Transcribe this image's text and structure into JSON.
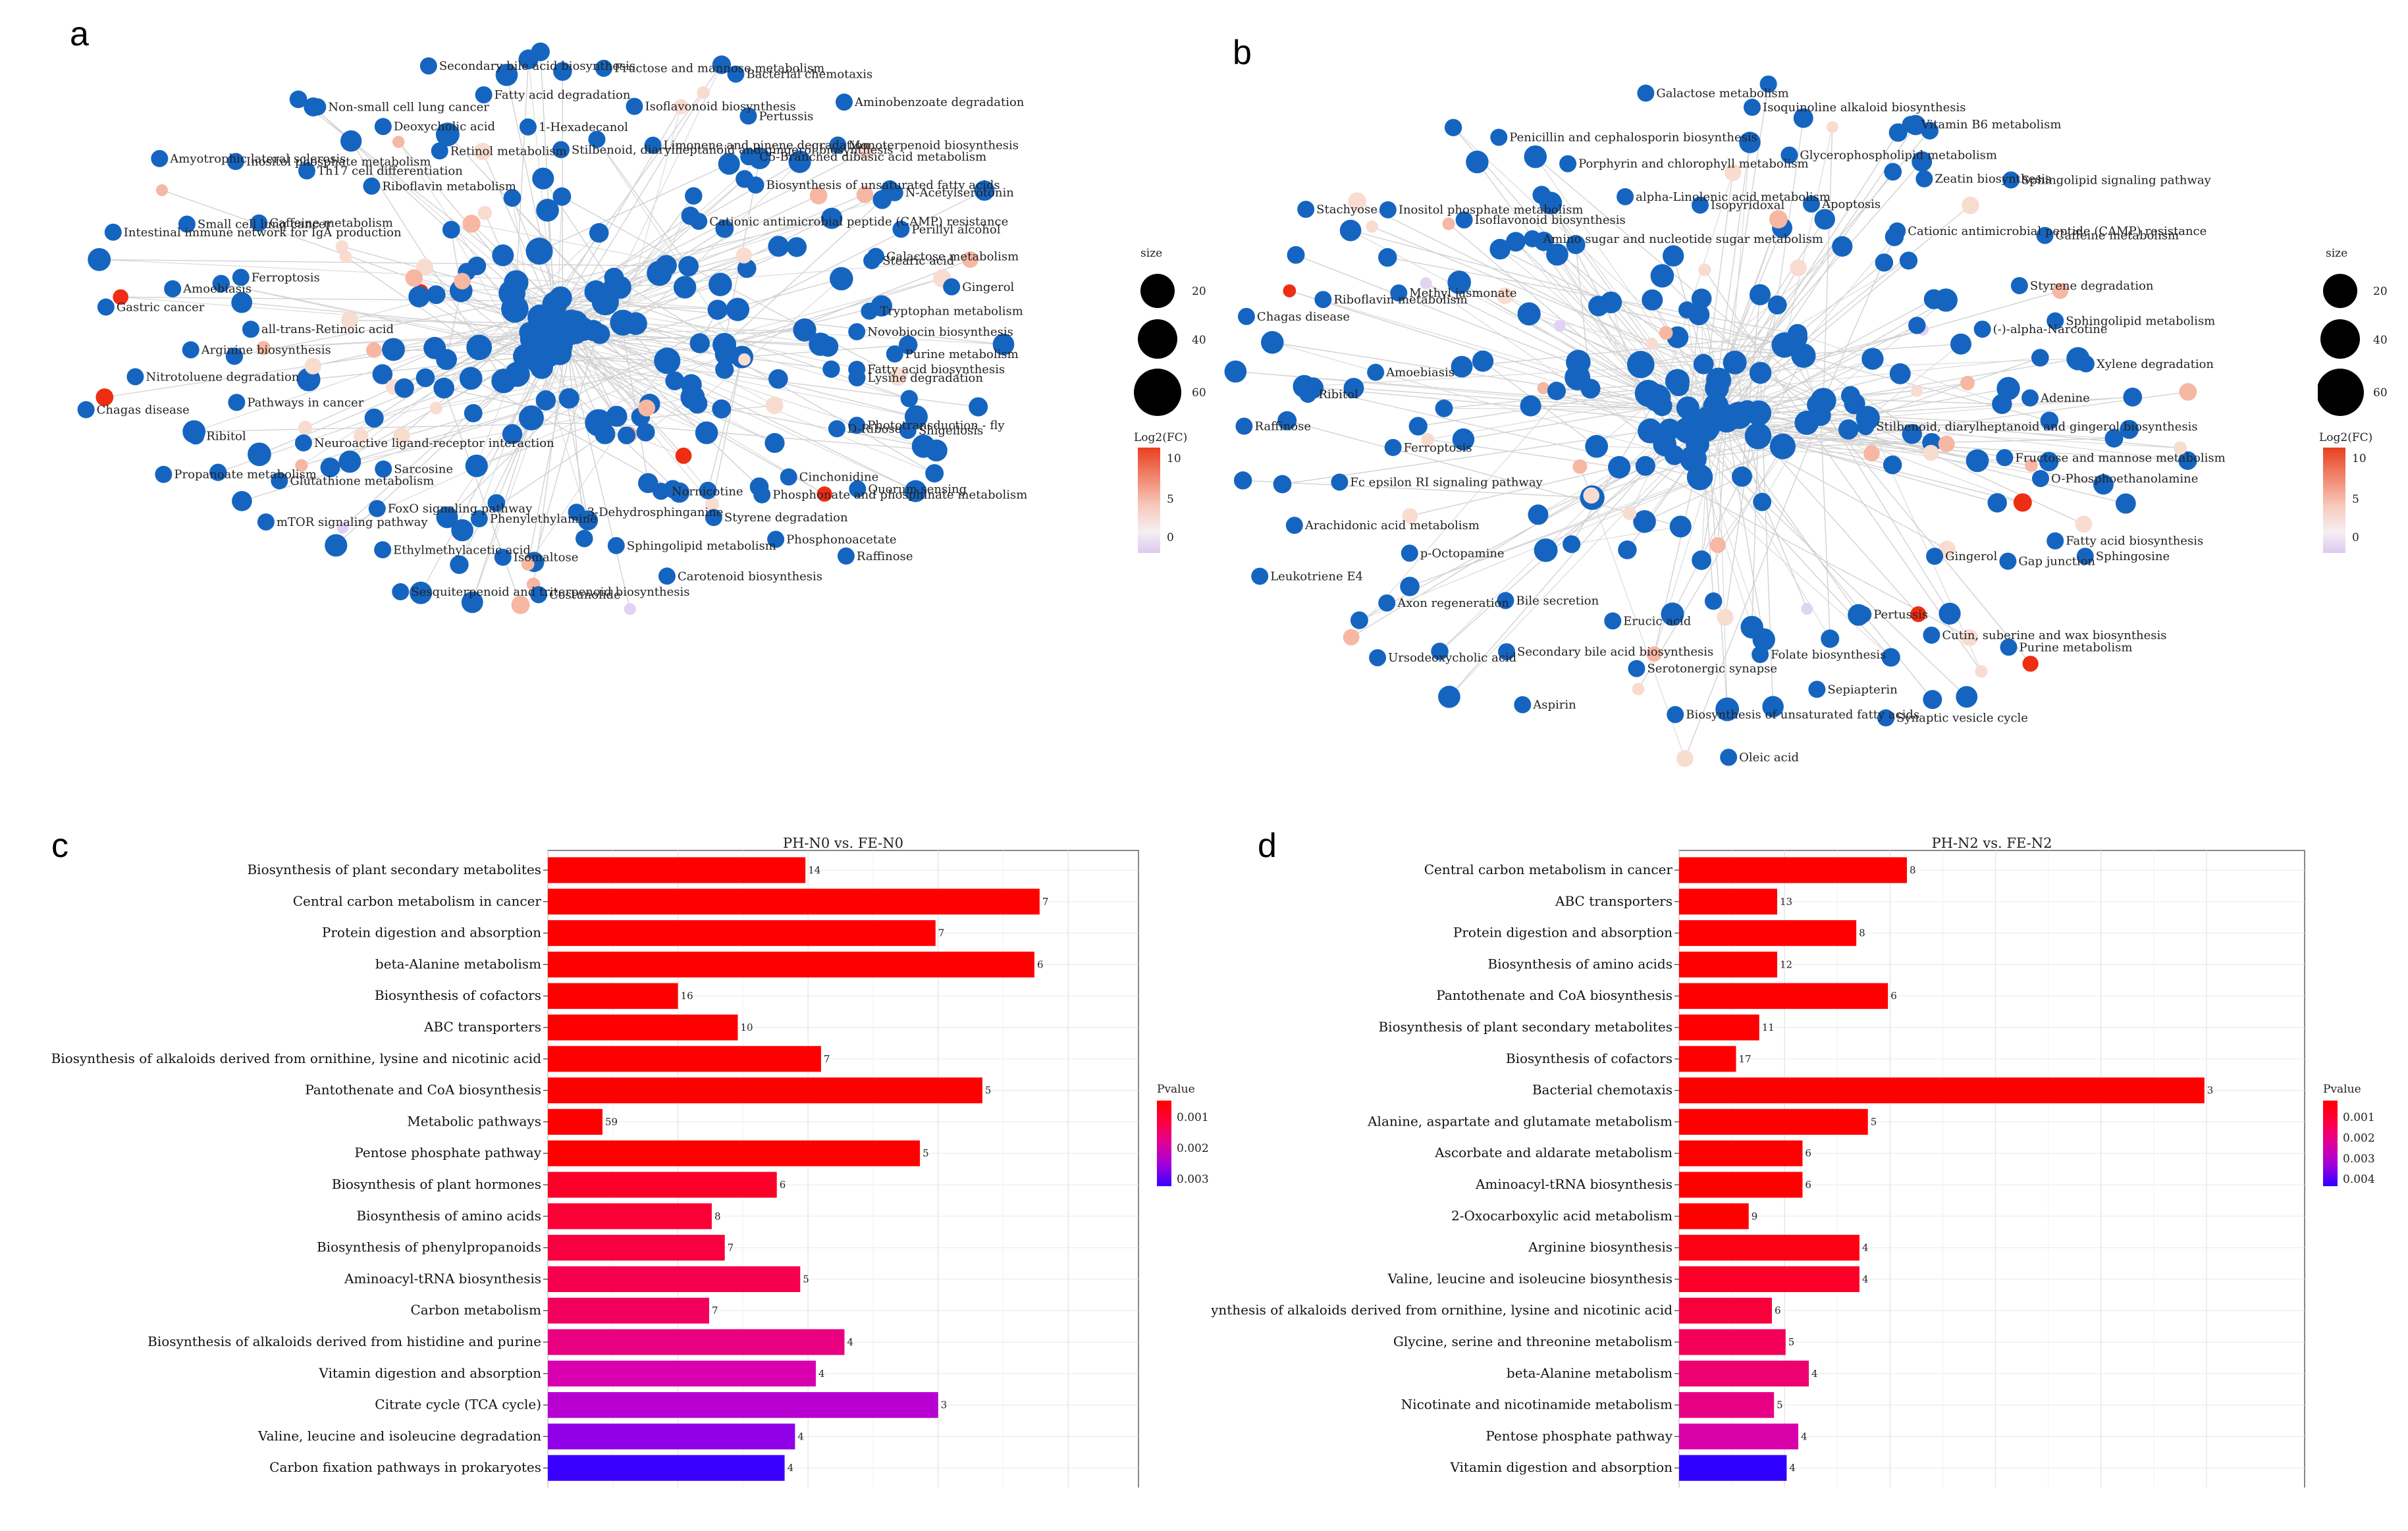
{
  "panels": {
    "a": "a",
    "b": "b",
    "c": "c",
    "d": "d"
  },
  "network_legend": {
    "size_title": "size",
    "size_values": [
      "20",
      "40",
      "60"
    ],
    "color_title": "Log2(FC)",
    "color_ticks": [
      "10",
      "5",
      "0"
    ]
  },
  "network_legend_b": {
    "size_title": "size",
    "size_values": [
      "20",
      "40",
      "60"
    ],
    "color_title": "Log2(FC)",
    "color_ticks": [
      "10",
      "5",
      "0"
    ]
  },
  "network_a_labels": [
    "Stilbenoid, diarylheptanoid and gingerol biosynthesis",
    "Fructose and mannose metabolism",
    "Isoflavonoid biosynthesis",
    "Limonene and pinene degradation",
    "Bacterial chemotaxis",
    "Pertussis",
    "C5-Branched dibasic acid metabolism",
    "Aminobenzoate degradation",
    "Monoterpenoid biosynthesis",
    "Biosynthesis of unsaturated fatty acids",
    "Cationic antimicrobial peptide (CAMP) resistance",
    "N-Acetylserotonin",
    "Perillyl alcohol",
    "Stearic acid",
    "Galactose metabolism",
    "Gingerol",
    "Tryptophan metabolism",
    "Novobiocin biosynthesis",
    "Purine metabolism",
    "Fatty acid biosynthesis",
    "Lysine degradation",
    "Phototransduction - fly",
    "Shigellosis",
    "D-Ribose",
    "Phosphonate and phosphinate metabolism",
    "Quorum sensing",
    "Cinchonidine",
    "Raffinose",
    "Phosphonoacetate",
    "Styrene degradation",
    "Nornicotine",
    "Carotenoid biosynthesis",
    "Sphingolipid metabolism",
    "3-Dehydrosphinganine",
    "Costunolide",
    "Isomaltose",
    "Phenylethylamine",
    "Sesquiterpenoid and triterpenoid biosynthesis",
    "Ethylmethylacetic acid",
    "FoxO signaling pathway",
    "Sarcosine",
    "mTOR signaling pathway",
    "Glutathione metabolism",
    "Neuroactive ligand-receptor interaction",
    "Propanoate metabolism",
    "Ribitol",
    "Pathways in cancer",
    "Chagas disease",
    "Nitrotoluene degradation",
    "Arginine biosynthesis",
    "all-trans-Retinoic acid",
    "Gastric cancer",
    "Amoebiasis",
    "Ferroptosis",
    "Intestinal immune network for IgA production",
    "Small cell lung cancer",
    "Caffeine metabolism",
    "Amyotrophic lateral sclerosis",
    "Inositol phosphate metabolism",
    "Th17 cell differentiation",
    "Riboflavin metabolism",
    "Non-small cell lung cancer",
    "Deoxycholic acid",
    "Retinol metabolism",
    "Secondary bile acid biosynthesis",
    "Fatty acid degradation",
    "1-Hexadecanol"
  ],
  "network_b_labels": [
    "Isopyridoxal",
    "Isoquinoline alkaloid biosynthesis",
    "Glycerophospholipid metabolism",
    "Apoptosis",
    "Vitamin B6 metabolism",
    "Zeatin biosynthesis",
    "Cationic antimicrobial peptide (CAMP) resistance",
    "Sphingolipid signaling pathway",
    "Caffeine metabolism",
    "Styrene degradation",
    "(-)-alpha-Narcotine",
    "Sphingolipid metabolism",
    "Xylene degradation",
    "Adenine",
    "Stilbenoid, diarylheptanoid and gingerol biosynthesis",
    "Fructose and mannose metabolism",
    "O-Phosphoethanolamine",
    "Fatty acid biosynthesis",
    "Sphingosine",
    "Gap junction",
    "Gingerol",
    "Purine metabolism",
    "Cutin, suberine and wax biosynthesis",
    "Pertussis",
    "Synaptic vesicle cycle",
    "Sepiapterin",
    "Folate biosynthesis",
    "Oleic acid",
    "Biosynthesis of unsaturated fatty acids",
    "Serotonergic synapse",
    "Erucic acid",
    "Aspirin",
    "Secondary bile acid biosynthesis",
    "Bile secretion",
    "Ursodeoxycholic acid",
    "Axon regeneration",
    "p-Octopamine",
    "Leukotriene E4",
    "Arachidonic acid metabolism",
    "Fc epsilon RI signaling pathway",
    "Ferroptosis",
    "Raffinose",
    "Ribitol",
    "Amoebiasis",
    "Chagas disease",
    "Riboflavin metabolism",
    "Methyl jasmonate",
    "Stachyose",
    "Inositol phosphate metabolism",
    "Isoflavonoid biosynthesis",
    "Amino sugar and nucleotide sugar metabolism",
    "Penicillin and cephalosporin biosynthesis",
    "Porphyrin and chlorophyll metabolism",
    "alpha-Linolenic acid metabolism",
    "Galactose metabolism"
  ],
  "chart_data": [
    {
      "type": "bar",
      "orientation": "horizontal",
      "title": "PH-N0 vs. FE-N0",
      "categories": [
        "Biosynthesis of plant secondary metabolites",
        "Central carbon metabolism in cancer",
        "Protein digestion and absorption",
        "beta-Alanine metabolism",
        "Biosynthesis of cofactors",
        "ABC transporters",
        "Biosynthesis of alkaloids derived from ornithine, lysine and nicotinic acid",
        "Pantothenate and CoA biosynthesis",
        "Metabolic pathways",
        "Pentose phosphate pathway",
        "Biosynthesis of plant hormones",
        "Biosynthesis of amino acids",
        "Biosynthesis of phenylpropanoids",
        "Aminoacyl-tRNA biosynthesis",
        "Carbon metabolism",
        "Biosynthesis of alkaloids derived from histidine and purine",
        "Vitamin digestion and absorption",
        "Citrate cycle (TCA cycle)",
        "Valine, leucine and isoleucine degradation",
        "Carbon fixation pathways in prokaryotes"
      ],
      "values": [
        0.099,
        0.189,
        0.149,
        0.187,
        0.05,
        0.073,
        0.105,
        0.167,
        0.021,
        0.143,
        0.088,
        0.063,
        0.068,
        0.097,
        0.062,
        0.114,
        0.103,
        0.15,
        0.095,
        0.091
      ],
      "counts": [
        "14",
        "7",
        "7",
        "6",
        "16",
        "10",
        "7",
        "5",
        "59",
        "5",
        "6",
        "8",
        "7",
        "5",
        "7",
        "4",
        "4",
        "3",
        "4",
        "4"
      ],
      "colors": [
        "#ff0000",
        "#ff0000",
        "#ff0000",
        "#ff0000",
        "#ff0000",
        "#ff0000",
        "#ff0000",
        "#ff0000",
        "#ff0000",
        "#ff0000",
        "#fb0028",
        "#fa0034",
        "#f8003f",
        "#f5004f",
        "#f2005e",
        "#e80080",
        "#d800ae",
        "#b800d3",
        "#9000e6",
        "#3a00ff"
      ],
      "xticks": [
        "0.00",
        "0.05",
        "0.10",
        "0.15",
        "0.20"
      ],
      "xlim": [
        0,
        0.227
      ],
      "legend": {
        "title": "Pvalue",
        "ticks": [
          "0.001",
          "0.002",
          "0.003"
        ],
        "colors": [
          "#ff0000",
          "#ff0040",
          "#e0009c",
          "#a000dc",
          "#3a00ff"
        ]
      }
    },
    {
      "type": "bar",
      "orientation": "horizontal",
      "title": "PH-N2 vs. FE-N2",
      "categories": [
        "Central carbon metabolism in cancer",
        "ABC transporters",
        "Protein digestion and absorption",
        "Biosynthesis of amino acids",
        "Pantothenate and CoA biosynthesis",
        "Biosynthesis of plant secondary metabolites",
        "Biosynthesis of cofactors",
        "Bacterial chemotaxis",
        "Alanine, aspartate and glutamate metabolism",
        "Ascorbate and aldarate metabolism",
        "Aminoacyl-tRNA biosynthesis",
        "2-Oxocarboxylic acid metabolism",
        "Arginine biosynthesis",
        "Valine, leucine and isoleucine biosynthesis",
        "Biosynthesis of alkaloids derived from ornithine, lysine and nicotinic acid",
        "Glycine, serine and threonine metabolism",
        "beta-Alanine metabolism",
        "Nicotinate and nicotinamide metabolism",
        "Pentose phosphate pathway",
        "Vitamin digestion and absorption"
      ],
      "values": [
        0.216,
        0.093,
        0.168,
        0.093,
        0.198,
        0.076,
        0.054,
        0.498,
        0.179,
        0.117,
        0.117,
        0.066,
        0.171,
        0.171,
        0.088,
        0.101,
        0.123,
        0.09,
        0.113,
        0.102
      ],
      "counts": [
        "8",
        "13",
        "8",
        "12",
        "6",
        "11",
        "17",
        "3",
        "5",
        "6",
        "6",
        "9",
        "4",
        "4",
        "6",
        "5",
        "4",
        "5",
        "4",
        "4"
      ],
      "colors": [
        "#ff0000",
        "#ff0000",
        "#ff0000",
        "#ff0000",
        "#ff0000",
        "#ff0000",
        "#ff0000",
        "#ff0000",
        "#ff0000",
        "#ff0000",
        "#ff0000",
        "#ff0000",
        "#fd0014",
        "#fb0028",
        "#f8003c",
        "#f40058",
        "#ee0070",
        "#e80084",
        "#d800a8",
        "#2f00ff"
      ],
      "xticks": [
        "0.0",
        "0.1",
        "0.2",
        "0.3",
        "0.4",
        "0.5"
      ],
      "xlim": [
        0,
        0.593
      ],
      "legend": {
        "title": "Pvalue",
        "ticks": [
          "0.001",
          "0.002",
          "0.003",
          "0.004"
        ],
        "colors": [
          "#ff0000",
          "#ff0040",
          "#e0009c",
          "#a000dc",
          "#2f00ff"
        ]
      }
    }
  ]
}
